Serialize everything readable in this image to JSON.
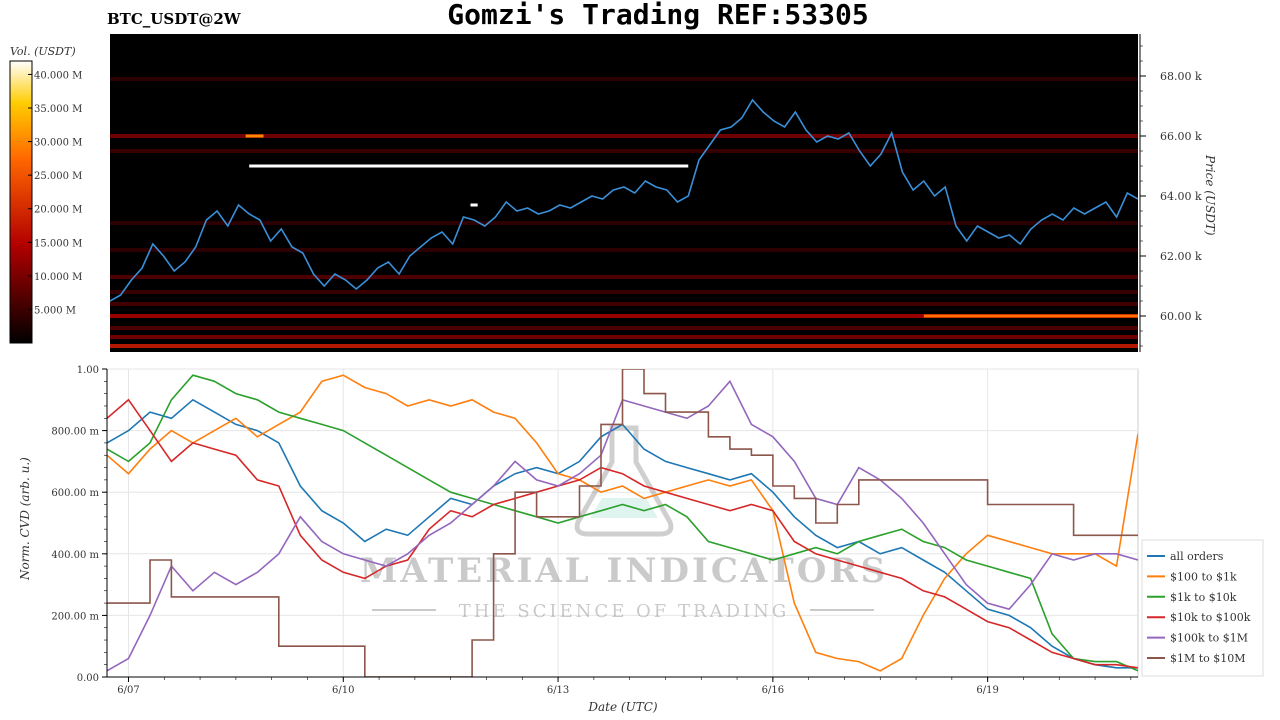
{
  "header": {
    "title": "Gomzi's Trading REF:53305",
    "pair": "BTC_USDT@2W"
  },
  "colorbar": {
    "label": "Vol. (USDT)",
    "ticks": [
      "5.000 M",
      "10.000 M",
      "15.000 M",
      "20.000 M",
      "25.000 M",
      "30.000 M",
      "35.000 M",
      "40.000 M"
    ]
  },
  "watermark": {
    "main": "MATERIAL INDICATORS",
    "sub": "THE SCIENCE OF TRADING"
  },
  "colors": {
    "heatmap_bg": "#000000",
    "price_line": "#3a8fd8",
    "all_orders": "#1f77b4",
    "s100_1k": "#ff7f0e",
    "s1k_10k": "#2ca02c",
    "s10k_100k": "#d62728",
    "s100k_1m": "#9467bd",
    "s1m_10m": "#8c564b"
  },
  "chart_data": [
    {
      "type": "heatmap",
      "title": "",
      "ylabel": "Price (USDT)",
      "y_ticks": [
        "60.00 k",
        "62.00 k",
        "64.00 k",
        "66.00 k",
        "68.00 k"
      ],
      "ylim": [
        58800,
        69400
      ],
      "xlim": [
        6.7,
        21.1
      ],
      "price_series": {
        "x": [
          6.7,
          6.85,
          7.0,
          7.15,
          7.3,
          7.45,
          7.6,
          7.75,
          7.9,
          8.05,
          8.2,
          8.35,
          8.5,
          8.65,
          8.8,
          8.95,
          9.1,
          9.25,
          9.4,
          9.55,
          9.7,
          9.85,
          10.0,
          10.15,
          10.3,
          10.45,
          10.6,
          10.75,
          10.9,
          11.05,
          11.2,
          11.35,
          11.5,
          11.65,
          11.8,
          11.95,
          12.1,
          12.25,
          12.4,
          12.55,
          12.7,
          12.85,
          13.0,
          13.15,
          13.3,
          13.45,
          13.6,
          13.75,
          13.9,
          14.05,
          14.2,
          14.35,
          14.5,
          14.65,
          14.8,
          14.95,
          15.1,
          15.25,
          15.4,
          15.55,
          15.7,
          15.85,
          16.0,
          16.15,
          16.3,
          16.45,
          16.6,
          16.75,
          16.9,
          17.05,
          17.2,
          17.35,
          17.5,
          17.65,
          17.8,
          17.95,
          18.1,
          18.25,
          18.4,
          18.55,
          18.7,
          18.85,
          19.0,
          19.15,
          19.3,
          19.45,
          19.6,
          19.75,
          19.9,
          20.05,
          20.2,
          20.35,
          20.5,
          20.65,
          20.8,
          20.95,
          21.1
        ],
        "y": [
          60.5,
          60.7,
          61.2,
          61.6,
          62.4,
          62.0,
          61.5,
          61.8,
          62.3,
          63.2,
          63.5,
          63.0,
          63.7,
          63.4,
          63.2,
          62.5,
          62.9,
          62.3,
          62.1,
          61.4,
          61.0,
          61.4,
          61.2,
          60.9,
          61.2,
          61.6,
          61.8,
          61.4,
          62.0,
          62.3,
          62.6,
          62.8,
          62.4,
          63.3,
          63.2,
          63.0,
          63.3,
          63.8,
          63.5,
          63.6,
          63.4,
          63.5,
          63.7,
          63.6,
          63.8,
          64.0,
          63.9,
          64.2,
          64.3,
          64.1,
          64.5,
          64.3,
          64.2,
          63.8,
          64.0,
          65.2,
          65.7,
          66.2,
          66.3,
          66.6,
          67.2,
          66.8,
          66.5,
          66.3,
          66.8,
          66.2,
          65.8,
          66.0,
          65.9,
          66.1,
          65.5,
          65.0,
          65.4,
          66.1,
          64.8,
          64.2,
          64.5,
          64.0,
          64.3,
          63.0,
          62.5,
          63.0,
          62.8,
          62.6,
          62.7,
          62.4,
          62.9,
          63.2,
          63.4,
          63.2,
          63.6,
          63.4,
          63.6,
          63.8,
          63.3,
          64.1,
          63.9
        ]
      },
      "liquidity_bands": [
        {
          "price": 59.0,
          "volume_m": 18
        },
        {
          "price": 59.3,
          "volume_m": 10
        },
        {
          "price": 59.6,
          "volume_m": 7
        },
        {
          "price": 60.0,
          "volume_m": 14
        },
        {
          "price": 60.4,
          "volume_m": 6
        },
        {
          "price": 60.8,
          "volume_m": 5
        },
        {
          "price": 61.3,
          "volume_m": 7
        },
        {
          "price": 62.2,
          "volume_m": 4
        },
        {
          "price": 63.1,
          "volume_m": 4
        },
        {
          "price": 66.0,
          "volume_m": 10
        },
        {
          "price": 65.5,
          "volume_m": 5
        },
        {
          "price": 67.9,
          "volume_m": 4
        }
      ],
      "walls": [
        {
          "x0": 8.65,
          "x1": 14.8,
          "price": 65.0,
          "volume_m": 42
        },
        {
          "x0": 8.6,
          "x1": 8.85,
          "price": 66.0,
          "volume_m": 30
        },
        {
          "x0": 18.1,
          "x1": 21.1,
          "price": 60.0,
          "volume_m": 28
        },
        {
          "x0": 11.75,
          "x1": 11.85,
          "price": 63.7,
          "volume_m": 42
        }
      ]
    },
    {
      "type": "line",
      "title": "",
      "xlabel": "Date (UTC)",
      "ylabel": "Norm. CVD (arb. u.)",
      "x_ticks": [
        "6/07",
        "6/10",
        "6/13",
        "6/16",
        "6/19"
      ],
      "x_tick_values": [
        7,
        10,
        13,
        16,
        19
      ],
      "y_ticks": [
        "0.00",
        "200.00 m",
        "400.00 m",
        "600.00 m",
        "800.00 m",
        "1.00"
      ],
      "ylim": [
        0,
        1
      ],
      "xlim": [
        6.7,
        21.1
      ],
      "legend_position": "right",
      "x": [
        6.7,
        7.0,
        7.3,
        7.6,
        7.9,
        8.2,
        8.5,
        8.8,
        9.1,
        9.4,
        9.7,
        10.0,
        10.3,
        10.6,
        10.9,
        11.2,
        11.5,
        11.8,
        12.1,
        12.4,
        12.7,
        13.0,
        13.3,
        13.6,
        13.9,
        14.2,
        14.5,
        14.8,
        15.1,
        15.4,
        15.7,
        16.0,
        16.3,
        16.6,
        16.9,
        17.2,
        17.5,
        17.8,
        18.1,
        18.4,
        18.7,
        19.0,
        19.3,
        19.6,
        19.9,
        20.2,
        20.5,
        20.8,
        21.1
      ],
      "series": [
        {
          "name": "all orders",
          "color_key": "all_orders",
          "values": [
            0.76,
            0.8,
            0.86,
            0.84,
            0.9,
            0.86,
            0.82,
            0.8,
            0.76,
            0.62,
            0.54,
            0.5,
            0.44,
            0.48,
            0.46,
            0.52,
            0.58,
            0.56,
            0.62,
            0.66,
            0.68,
            0.66,
            0.7,
            0.78,
            0.82,
            0.74,
            0.7,
            0.68,
            0.66,
            0.64,
            0.66,
            0.6,
            0.52,
            0.46,
            0.42,
            0.44,
            0.4,
            0.42,
            0.38,
            0.34,
            0.28,
            0.22,
            0.2,
            0.16,
            0.1,
            0.06,
            0.04,
            0.03,
            0.03
          ]
        },
        {
          "name": "$100 to $1k",
          "color_key": "s100_1k",
          "values": [
            0.72,
            0.66,
            0.74,
            0.8,
            0.76,
            0.8,
            0.84,
            0.78,
            0.82,
            0.86,
            0.96,
            0.98,
            0.94,
            0.92,
            0.88,
            0.9,
            0.88,
            0.9,
            0.86,
            0.84,
            0.76,
            0.66,
            0.64,
            0.6,
            0.62,
            0.58,
            0.6,
            0.62,
            0.64,
            0.62,
            0.64,
            0.54,
            0.24,
            0.08,
            0.06,
            0.05,
            0.02,
            0.06,
            0.2,
            0.32,
            0.4,
            0.46,
            0.44,
            0.42,
            0.4,
            0.4,
            0.4,
            0.36,
            0.79
          ]
        },
        {
          "name": "$1k to $10k",
          "color_key": "s1k_10k",
          "values": [
            0.74,
            0.7,
            0.76,
            0.9,
            0.98,
            0.96,
            0.92,
            0.9,
            0.86,
            0.84,
            0.82,
            0.8,
            0.76,
            0.72,
            0.68,
            0.64,
            0.6,
            0.58,
            0.56,
            0.54,
            0.52,
            0.5,
            0.52,
            0.54,
            0.56,
            0.54,
            0.56,
            0.52,
            0.44,
            0.42,
            0.4,
            0.38,
            0.4,
            0.42,
            0.4,
            0.44,
            0.46,
            0.48,
            0.44,
            0.42,
            0.38,
            0.36,
            0.34,
            0.32,
            0.14,
            0.06,
            0.05,
            0.05,
            0.02
          ]
        },
        {
          "name": "$10k to $100k",
          "color_key": "s10k_100k",
          "values": [
            0.84,
            0.9,
            0.8,
            0.7,
            0.76,
            0.74,
            0.72,
            0.64,
            0.62,
            0.46,
            0.38,
            0.34,
            0.32,
            0.36,
            0.38,
            0.48,
            0.54,
            0.52,
            0.56,
            0.58,
            0.6,
            0.62,
            0.64,
            0.68,
            0.66,
            0.62,
            0.6,
            0.58,
            0.56,
            0.54,
            0.56,
            0.54,
            0.44,
            0.4,
            0.38,
            0.36,
            0.34,
            0.32,
            0.28,
            0.26,
            0.22,
            0.18,
            0.16,
            0.12,
            0.08,
            0.06,
            0.04,
            0.04,
            0.03
          ]
        },
        {
          "name": "$100k to $1M",
          "color_key": "s100k_1m",
          "values": [
            0.02,
            0.06,
            0.2,
            0.36,
            0.28,
            0.34,
            0.3,
            0.34,
            0.4,
            0.52,
            0.44,
            0.4,
            0.38,
            0.36,
            0.4,
            0.46,
            0.5,
            0.56,
            0.62,
            0.7,
            0.64,
            0.62,
            0.66,
            0.72,
            0.9,
            0.88,
            0.86,
            0.84,
            0.88,
            0.96,
            0.82,
            0.78,
            0.7,
            0.58,
            0.56,
            0.68,
            0.64,
            0.58,
            0.5,
            0.4,
            0.3,
            0.24,
            0.22,
            0.3,
            0.4,
            0.38,
            0.4,
            0.4,
            0.38
          ]
        },
        {
          "name": "$1M to $10M",
          "color_key": "s1m_10m",
          "values": [
            0.24,
            0.24,
            0.38,
            0.26,
            0.26,
            0.26,
            0.26,
            0.26,
            0.1,
            0.1,
            0.1,
            0.1,
            0.0,
            0.0,
            0.0,
            0.0,
            0.0,
            0.12,
            0.4,
            0.6,
            0.52,
            0.52,
            0.62,
            0.82,
            1.0,
            0.92,
            0.86,
            0.86,
            0.78,
            0.74,
            0.72,
            0.62,
            0.58,
            0.5,
            0.56,
            0.64,
            0.64,
            0.64,
            0.64,
            0.64,
            0.64,
            0.56,
            0.56,
            0.56,
            0.56,
            0.46,
            0.46,
            0.46,
            0.46
          ]
        }
      ]
    }
  ]
}
